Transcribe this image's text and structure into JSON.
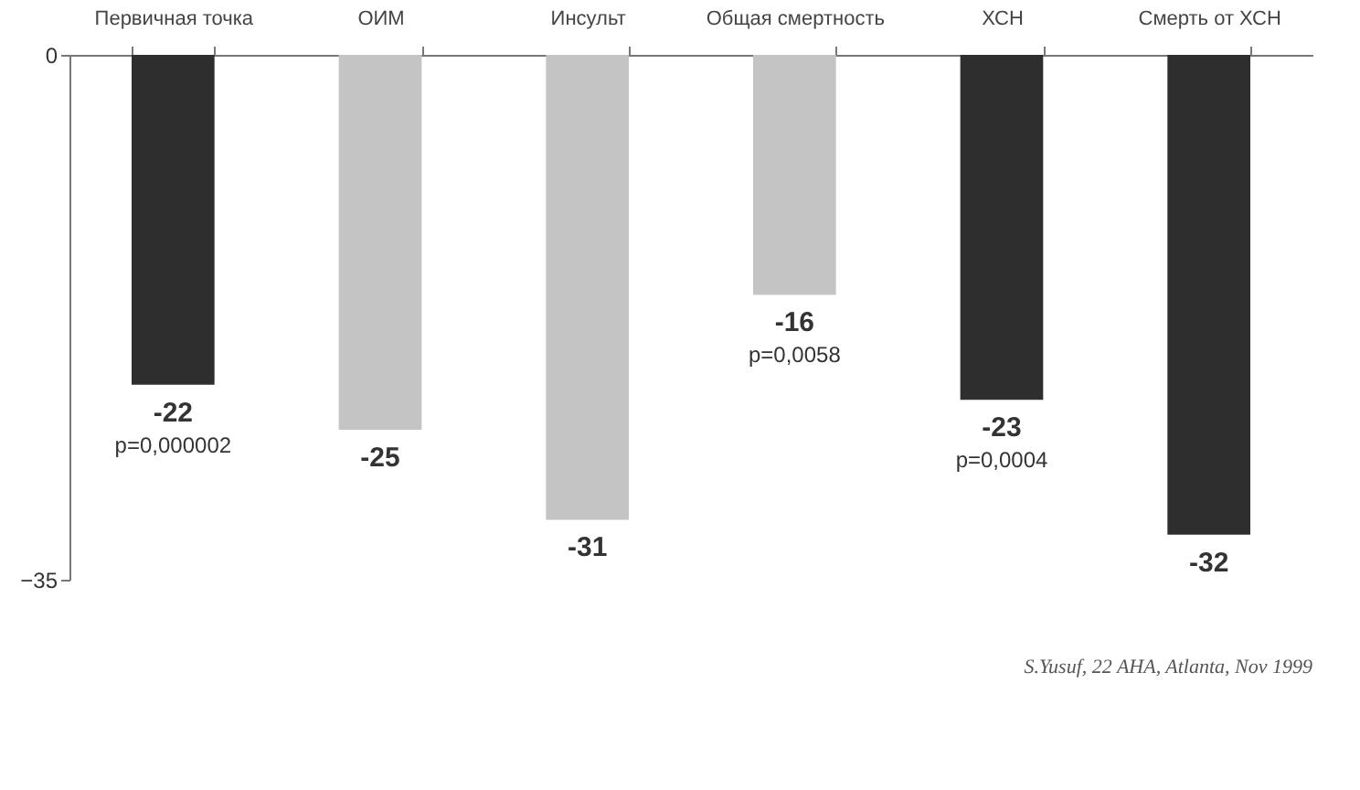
{
  "chart_data": {
    "type": "bar",
    "categories": [
      "Первичная\nточка",
      "ОИМ",
      "Инсульт",
      "Общая\nсмертность",
      "ХСН",
      "Смерть от\nХСН"
    ],
    "values": [
      -22,
      -25,
      -31,
      -16,
      -23,
      -32
    ],
    "colors": [
      "#2e2e2e",
      "#c4c4c4",
      "#c4c4c4",
      "#c4c4c4",
      "#2e2e2e",
      "#2e2e2e"
    ],
    "ylim": [
      -35,
      0
    ],
    "yticks": [
      -35,
      0
    ],
    "data_labels": true,
    "grid": false,
    "annotations": [
      {
        "text": "p=0,000002",
        "x": "Первичная\nточка",
        "y": -22
      },
      {
        "text": "p=0,0058",
        "x": "Общая\nсмертность",
        "y": -16
      },
      {
        "text": "p=0,0004",
        "x": "ХСН",
        "y": -23
      },
      "S.Yusuf, 22 AHA, Atlanta, Nov 1999"
    ]
  }
}
